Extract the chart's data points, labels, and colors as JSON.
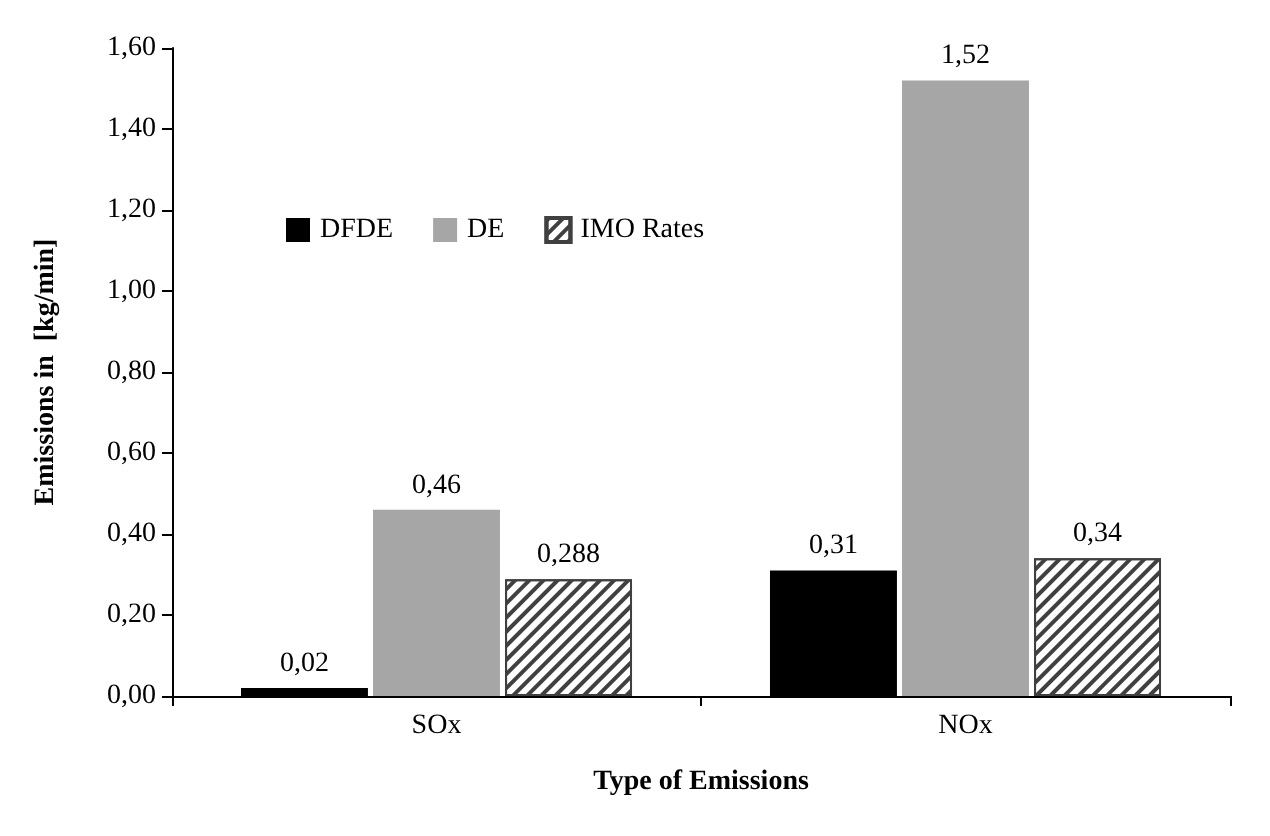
{
  "chart_data": {
    "type": "bar",
    "xlabel": "Type of Emissions",
    "ylabel": "Emissions in  [kg/min]",
    "categories": [
      "SOx",
      "NOx"
    ],
    "series": [
      {
        "name": "DFDE",
        "color": "#000000",
        "values": [
          0.02,
          0.31
        ],
        "value_labels": [
          "0,02",
          "0,31"
        ]
      },
      {
        "name": "DE",
        "color": "#a6a6a6",
        "values": [
          0.46,
          1.52
        ],
        "value_labels": [
          "0,46",
          "1,52"
        ]
      },
      {
        "name": "IMO Rates",
        "color": "#404040",
        "values": [
          0.288,
          0.34
        ],
        "value_labels": [
          "0,288",
          "0,34"
        ]
      }
    ],
    "ylim": [
      0,
      1.6
    ],
    "yticks": [
      {
        "value": 0,
        "label": "0,00"
      },
      {
        "value": 0.2,
        "label": "0,20"
      },
      {
        "value": 0.4,
        "label": "0,40"
      },
      {
        "value": 0.6,
        "label": "0,60"
      },
      {
        "value": 0.8,
        "label": "0,80"
      },
      {
        "value": 1,
        "label": "1,00"
      },
      {
        "value": 1.2,
        "label": "1,20"
      },
      {
        "value": 1.4,
        "label": "1,40"
      },
      {
        "value": 1.6,
        "label": "1,60"
      }
    ],
    "grid": false,
    "legend": "top left"
  }
}
